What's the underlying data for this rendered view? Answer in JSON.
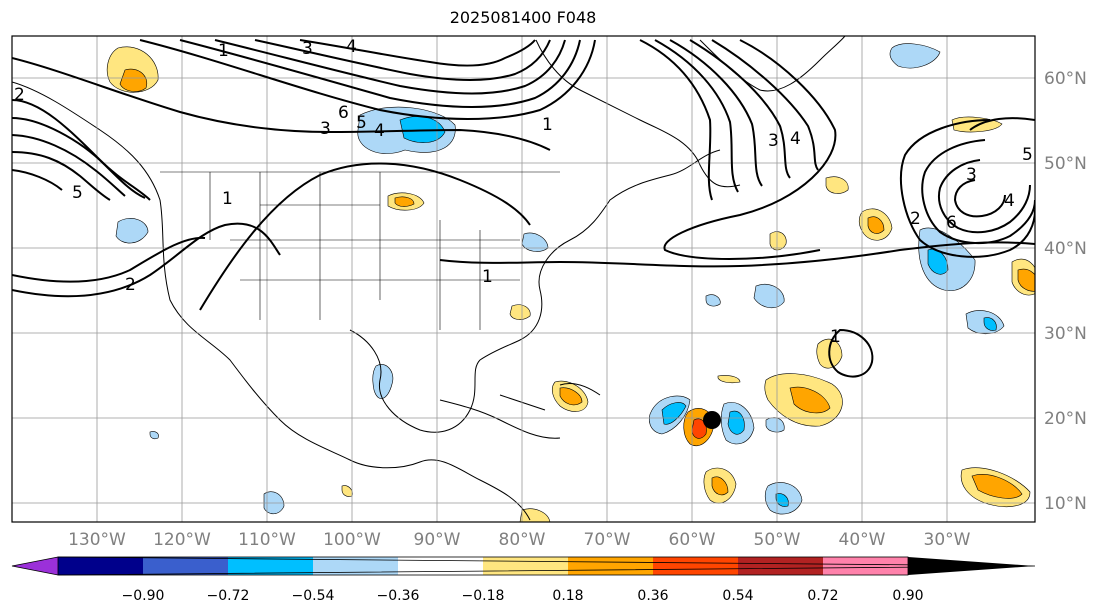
{
  "title": "2025081400 F048",
  "lat_labels": [
    "60°N",
    "50°N",
    "40°N",
    "30°N",
    "20°N",
    "10°N"
  ],
  "lon_labels": [
    "130°W",
    "120°W",
    "110°W",
    "100°W",
    "90°W",
    "80°W",
    "70°W",
    "60°W",
    "50°W",
    "40°W",
    "30°W"
  ],
  "colorbar": {
    "ticks": [
      "−0.90",
      "−0.72",
      "−0.54",
      "−0.36",
      "−0.18",
      "0.18",
      "0.36",
      "0.54",
      "0.72",
      "0.90"
    ],
    "colors": [
      "#9b30d9",
      "#00008b",
      "#3a5fcd",
      "#00bfff",
      "#add8f7",
      "#ffffff",
      "#ffe680",
      "#ffa500",
      "#ff4500",
      "#b22222",
      "#ff82ab"
    ]
  },
  "contour_labels": [
    "2",
    "2",
    "3",
    "4",
    "5",
    "6",
    "1",
    "1",
    "3",
    "4",
    "5",
    "3",
    "4",
    "1",
    "1",
    "2",
    "3",
    "4",
    "5",
    "6",
    "1"
  ],
  "storm_marker": "tropical-cyclone-center"
}
